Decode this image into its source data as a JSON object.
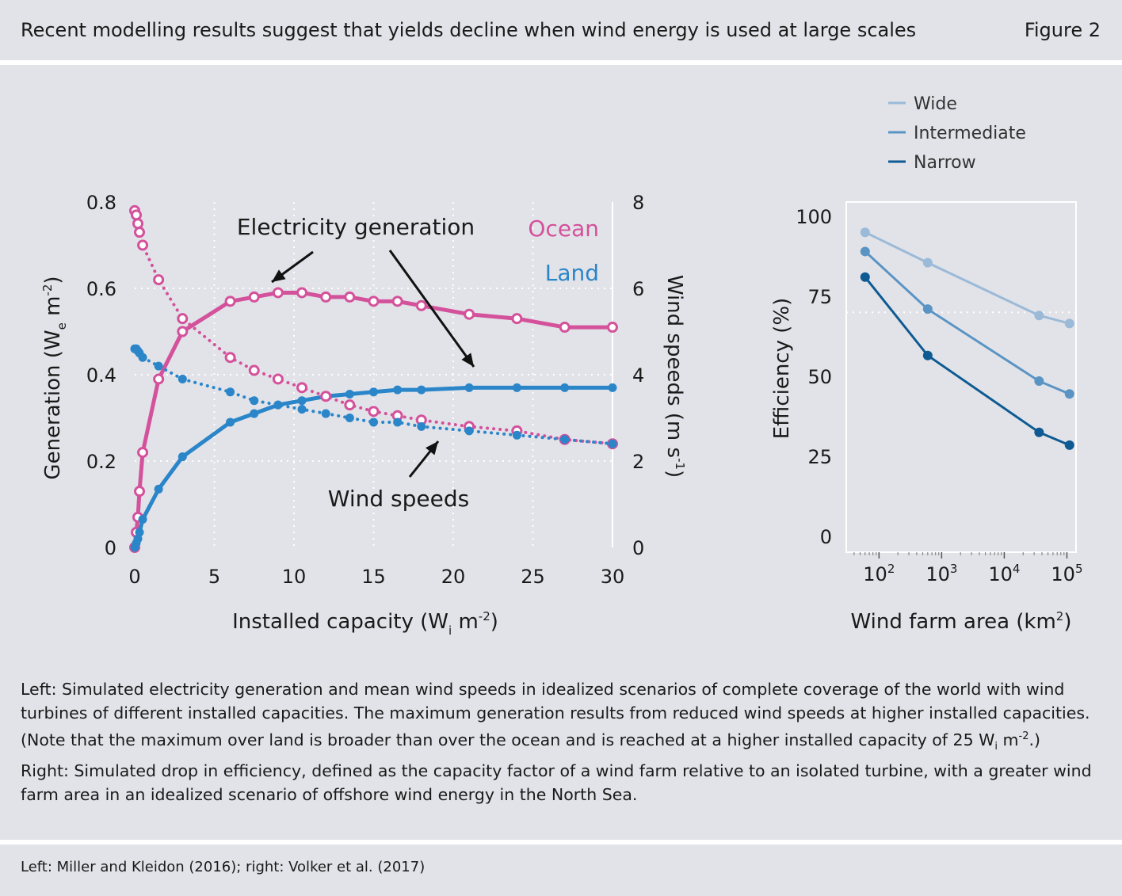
{
  "header": {
    "title": "Recent modelling results suggest that yields decline when wind energy is used at large scales",
    "figure_label": "Figure 2"
  },
  "colors": {
    "ocean": "#d4519b",
    "land": "#2a85c9",
    "wide": "#9bbad8",
    "intermediate": "#5a94c4",
    "narrow": "#0e5a92"
  },
  "chart_data": [
    {
      "type": "line",
      "xlabel": "Installed capacity (W",
      "xlabel_sub": "i",
      "xlabel_tail": " m",
      "xlabel_sup": "-2",
      "xlabel_end": ")",
      "ylabel": "Generation (W",
      "ylabel_sub": "e",
      "ylabel_tail": " m",
      "ylabel_sup": "-2",
      "ylabel_end": ")",
      "y2label": "Wind speeds (m s",
      "y2label_sup": "-1",
      "y2label_end": ")",
      "xlim": [
        0,
        30
      ],
      "ylim": [
        0,
        0.8
      ],
      "y2lim": [
        0,
        8
      ],
      "x_ticks": [
        "0",
        "5",
        "10",
        "15",
        "20",
        "25",
        "30"
      ],
      "y_ticks": [
        "0",
        "0.2",
        "0.4",
        "0.6",
        "0.8"
      ],
      "y2_ticks": [
        "0",
        "2",
        "4",
        "6",
        "8"
      ],
      "grid": true,
      "labels": {
        "ocean": "Ocean",
        "land": "Land",
        "generation": "Electricity generation",
        "wind": "Wind speeds"
      },
      "series": [
        {
          "name": "Ocean",
          "metric": "generation",
          "axis": "left",
          "x": [
            0,
            0.1,
            0.2,
            0.3,
            0.5,
            1.5,
            3,
            6,
            7.5,
            9,
            10.5,
            12,
            13.5,
            15,
            16.5,
            18,
            21,
            24,
            27,
            30
          ],
          "y": [
            0,
            0.035,
            0.07,
            0.13,
            0.22,
            0.39,
            0.5,
            0.57,
            0.58,
            0.59,
            0.59,
            0.58,
            0.58,
            0.57,
            0.57,
            0.56,
            0.54,
            0.53,
            0.51,
            0.51
          ]
        },
        {
          "name": "Land",
          "metric": "generation",
          "axis": "left",
          "x": [
            0,
            0.1,
            0.2,
            0.3,
            0.5,
            1.5,
            3,
            6,
            7.5,
            9,
            10.5,
            12,
            13.5,
            15,
            16.5,
            18,
            21,
            24,
            27,
            30
          ],
          "y": [
            0,
            0.01,
            0.02,
            0.035,
            0.065,
            0.135,
            0.21,
            0.29,
            0.31,
            0.33,
            0.34,
            0.35,
            0.355,
            0.36,
            0.365,
            0.365,
            0.37,
            0.37,
            0.37,
            0.37
          ]
        },
        {
          "name": "Ocean",
          "metric": "wind",
          "axis": "right",
          "x": [
            0,
            0.1,
            0.2,
            0.3,
            0.5,
            1.5,
            3,
            6,
            7.5,
            9,
            10.5,
            12,
            13.5,
            15,
            16.5,
            18,
            21,
            24,
            27,
            30
          ],
          "y": [
            7.8,
            7.7,
            7.5,
            7.3,
            7.0,
            6.2,
            5.3,
            4.4,
            4.1,
            3.9,
            3.7,
            3.5,
            3.3,
            3.15,
            3.05,
            2.95,
            2.8,
            2.7,
            2.5,
            2.4
          ]
        },
        {
          "name": "Land",
          "metric": "wind",
          "axis": "right",
          "x": [
            0,
            0.1,
            0.2,
            0.3,
            0.5,
            1.5,
            3,
            6,
            7.5,
            9,
            10.5,
            12,
            13.5,
            15,
            16.5,
            18,
            21,
            24,
            27,
            30
          ],
          "y": [
            4.6,
            4.6,
            4.55,
            4.5,
            4.4,
            4.2,
            3.9,
            3.6,
            3.4,
            3.3,
            3.2,
            3.1,
            3.0,
            2.9,
            2.9,
            2.8,
            2.7,
            2.6,
            2.5,
            2.4
          ]
        }
      ]
    },
    {
      "type": "line",
      "xlabel": "Wind farm area (km",
      "xlabel_sup": "2",
      "xlabel_end": ")",
      "ylabel": "Efficiency (%)",
      "x_scale": "log",
      "xlim": [
        30,
        140000
      ],
      "ylim": [
        0,
        100
      ],
      "x_ticks": [
        {
          "value": 100,
          "base": "10",
          "exp": "2"
        },
        {
          "value": 1000,
          "base": "10",
          "exp": "3"
        },
        {
          "value": 10000,
          "base": "10",
          "exp": "4"
        },
        {
          "value": 100000,
          "base": "10",
          "exp": "5"
        }
      ],
      "y_ticks": [
        "0",
        "25",
        "50",
        "75",
        "100"
      ],
      "reference_line": 70,
      "legend": "top",
      "series": [
        {
          "name": "Wide",
          "x": [
            60,
            600,
            36000,
            110000
          ],
          "y": [
            95,
            85.5,
            69,
            66.5
          ]
        },
        {
          "name": "Intermediate",
          "x": [
            60,
            600,
            36000,
            110000
          ],
          "y": [
            89,
            71,
            48.5,
            44.5
          ]
        },
        {
          "name": "Narrow",
          "x": [
            60,
            600,
            36000,
            110000
          ],
          "y": [
            81,
            56.5,
            32.5,
            28.5
          ]
        }
      ]
    }
  ],
  "caption": {
    "left_a": "Left: Simulated electricity generation and mean wind speeds in idealized scenarios of complete coverage of the world with wind turbines of different installed capacities. The maximum generation results from reduced wind speeds at higher installed capacities. (Note that the maximum over land is broader than over the ocean and is reached at a higher installed capacity of 25 W",
    "left_sub": "i",
    "left_mid": " m",
    "left_sup": "-2",
    "left_end": ".)",
    "right": "Right: Simulated drop in efficiency, defined as the capacity factor of a wind farm relative to an isolated turbine, with a greater wind farm area in an idealized scenario of offshore wind energy in the North Sea."
  },
  "source": "Left: Miller and Kleidon (2016); right: Volker et al. (2017)"
}
